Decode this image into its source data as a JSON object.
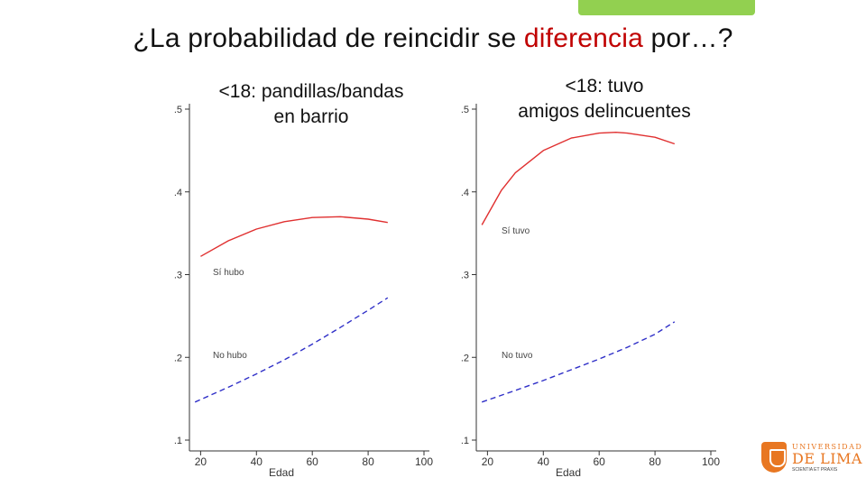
{
  "slide": {
    "title_pre": "¿La probabilidad de reincidir se ",
    "title_highlight": "diferencia",
    "title_post": " por…?",
    "accent_color": "#c00000",
    "tab_color": "#92d050"
  },
  "logo": {
    "line1": "UNIVERSIDAD",
    "line2": "DE LIMA",
    "motto": "SCIENTIA ET PRAXIS",
    "color": "#e87722"
  },
  "chart_data": [
    {
      "type": "line",
      "title": "<18: pandillas/bandas\nen barrio",
      "xlabel": "Edad",
      "ylabel": "",
      "xlim": [
        16,
        100
      ],
      "ylim": [
        0.1,
        0.5
      ],
      "xticks": [
        "20",
        "40",
        "60",
        "80",
        "100"
      ],
      "yticks": [
        ".1",
        ".2",
        ".3",
        ".4",
        ".5"
      ],
      "grid": false,
      "series": [
        {
          "name": "Sí hubo",
          "color": "#e03030",
          "dash": "solid",
          "x": [
            20,
            30,
            40,
            50,
            60,
            70,
            80,
            87
          ],
          "y": [
            0.322,
            0.341,
            0.355,
            0.364,
            0.369,
            0.37,
            0.367,
            0.363
          ]
        },
        {
          "name": "No hubo",
          "color": "#3030c8",
          "dash": "dashed",
          "x": [
            18,
            30,
            40,
            50,
            60,
            70,
            80,
            87
          ],
          "y": [
            0.146,
            0.164,
            0.18,
            0.197,
            0.216,
            0.236,
            0.257,
            0.272
          ]
        }
      ]
    },
    {
      "type": "line",
      "title": "<18: tuvo\namigos delincuentes",
      "xlabel": "Edad",
      "ylabel": "",
      "xlim": [
        16,
        100
      ],
      "ylim": [
        0.1,
        0.5
      ],
      "xticks": [
        "20",
        "40",
        "60",
        "80",
        "100"
      ],
      "yticks": [
        ".1",
        ".2",
        ".3",
        ".4",
        ".5"
      ],
      "grid": false,
      "series": [
        {
          "name": "Sí tuvo",
          "color": "#e03030",
          "dash": "solid",
          "x": [
            18,
            25,
            30,
            40,
            50,
            60,
            66,
            70,
            80,
            87
          ],
          "y": [
            0.36,
            0.402,
            0.423,
            0.45,
            0.465,
            0.471,
            0.472,
            0.471,
            0.466,
            0.458
          ]
        },
        {
          "name": "No tuvo",
          "color": "#3030c8",
          "dash": "dashed",
          "x": [
            18,
            30,
            40,
            50,
            60,
            70,
            80,
            87
          ],
          "y": [
            0.146,
            0.16,
            0.172,
            0.185,
            0.198,
            0.212,
            0.228,
            0.243
          ]
        }
      ]
    }
  ]
}
